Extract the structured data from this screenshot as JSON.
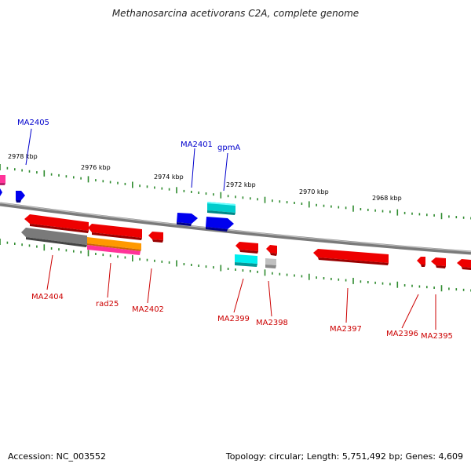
{
  "title": "Methanosarcina acetivorans C2A, complete genome",
  "footer": {
    "accession": "Accession: NC_003552",
    "summary": "Topology: circular; Length: 5,751,492 bp; Genes: 4,609"
  },
  "ruler": {
    "labels": [
      "2978 kbp",
      "2976 kbp",
      "2974 kbp",
      "2972 kbp",
      "2970 kbp",
      "2968 kbp"
    ]
  },
  "genes_top": [
    {
      "name": "MA2405",
      "color": "#0000cc"
    },
    {
      "name": "MA2401",
      "color": "#0000cc"
    },
    {
      "name": "gpmA",
      "color": "#0000cc"
    }
  ],
  "genes_bottom": [
    {
      "name": "MA2404",
      "color": "#cc0000"
    },
    {
      "name": "rad25",
      "color": "#cc0000"
    },
    {
      "name": "MA2402",
      "color": "#cc0000"
    },
    {
      "name": "MA2399",
      "color": "#cc0000"
    },
    {
      "name": "MA2398",
      "color": "#cc0000"
    },
    {
      "name": "MA2397",
      "color": "#cc0000"
    },
    {
      "name": "MA2396",
      "color": "#cc0000"
    },
    {
      "name": "MA2395",
      "color": "#cc0000"
    }
  ],
  "colors": {
    "backbone": "#808080",
    "tick": "#2e8b2e",
    "forward_gene": "#0000ee",
    "reverse_gene": "#ee0000",
    "rna_cyan": "#00dddd",
    "pseudo_gray": "#777777",
    "orange": "#ff9900",
    "magenta": "#ff3399"
  }
}
